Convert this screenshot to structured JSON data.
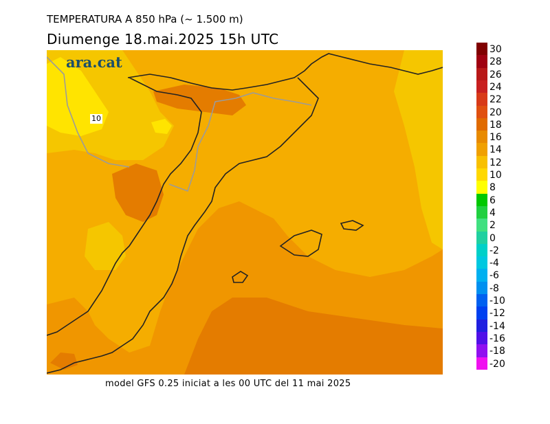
{
  "title": {
    "line1": "TEMPERATURA A 850 hPa (~ 1.500 m)",
    "line2": "Diumenge  18.mai.2025  15h  UTC"
  },
  "logo": "ara.cat",
  "contour_label": "10",
  "footer": "model GFS 0.25 iniciat a les 00 UTC del 11 mai 2025",
  "legend": {
    "labels": [
      "30",
      "28",
      "26",
      "24",
      "22",
      "20",
      "18",
      "16",
      "14",
      "12",
      "10",
      "8",
      "6",
      "4",
      "2",
      "0",
      "-2",
      "-4",
      "-6",
      "-8",
      "-10",
      "-12",
      "-14",
      "-16",
      "-18",
      "-20"
    ],
    "colors": [
      "#800000",
      "#a00010",
      "#b81818",
      "#c82020",
      "#d83a18",
      "#e05010",
      "#e06a00",
      "#e88a00",
      "#f0a000",
      "#f8c000",
      "#ffd800",
      "#ffff00",
      "#00c800",
      "#20d040",
      "#40e080",
      "#20d0a0",
      "#00d0c8",
      "#00c8e0",
      "#00b0f0",
      "#0090f0",
      "#0060f0",
      "#0040f0",
      "#2020e0",
      "#5010e8",
      "#9010f0",
      "#f010f0"
    ]
  },
  "colors": {
    "background": "#ffffff",
    "temp_10_12": "#f5c600",
    "temp_12_14": "#f5ad00",
    "temp_14_16": "#f09600",
    "temp_16_18": "#e47c00",
    "temp_8_10": "#ffe400",
    "border": "#9b9b9b",
    "coast": "#222222"
  }
}
